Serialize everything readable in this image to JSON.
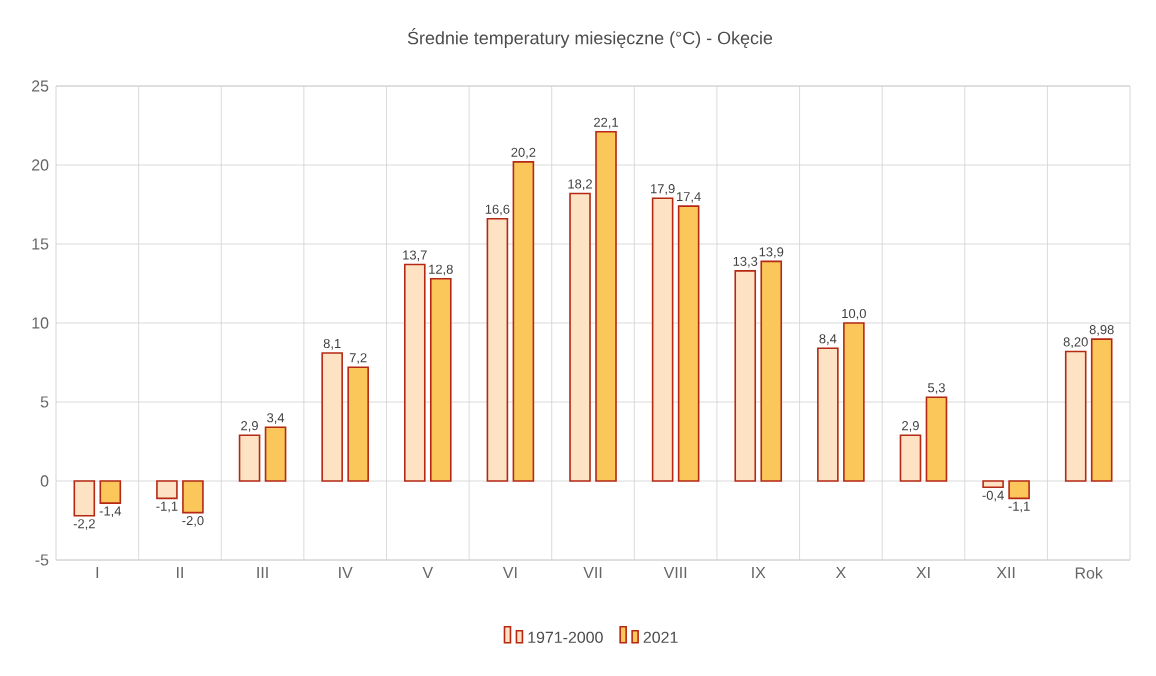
{
  "chart_data": {
    "type": "bar",
    "title": "Średnie temperatury  miesięczne  (°C) - Okęcie",
    "categories": [
      "I",
      "II",
      "III",
      "IV",
      "V",
      "VI",
      "VII",
      "VIII",
      "IX",
      "X",
      "XI",
      "XII",
      "Rok"
    ],
    "series": [
      {
        "name": "1971-2000",
        "color": "#fde3c3",
        "values": [
          -2.2,
          -1.1,
          2.9,
          8.1,
          13.7,
          16.6,
          18.2,
          17.9,
          13.3,
          8.4,
          2.9,
          -0.4,
          8.2
        ],
        "value_labels": [
          "-2,2",
          "-1,1",
          "2,9",
          "8,1",
          "13,7",
          "16,6",
          "18,2",
          "17,9",
          "13,3",
          "8,4",
          "2,9",
          "-0,4",
          "8,20"
        ]
      },
      {
        "name": "2021",
        "color": "#fcc75a",
        "values": [
          -1.4,
          -2.0,
          3.4,
          7.2,
          12.8,
          20.2,
          22.1,
          17.4,
          13.9,
          10.0,
          5.3,
          -1.1,
          8.98
        ],
        "value_labels": [
          "-1,4",
          "-2,0",
          "3,4",
          "7,2",
          "12,8",
          "20,2",
          "22,1",
          "17,4",
          "13,9",
          "10,0",
          "5,3",
          "-1,1",
          "8,98"
        ]
      }
    ],
    "ylim": [
      -5,
      25
    ],
    "yticks": [
      -5,
      0,
      5,
      10,
      15,
      20,
      25
    ],
    "grid": true,
    "legend": "bottom"
  }
}
